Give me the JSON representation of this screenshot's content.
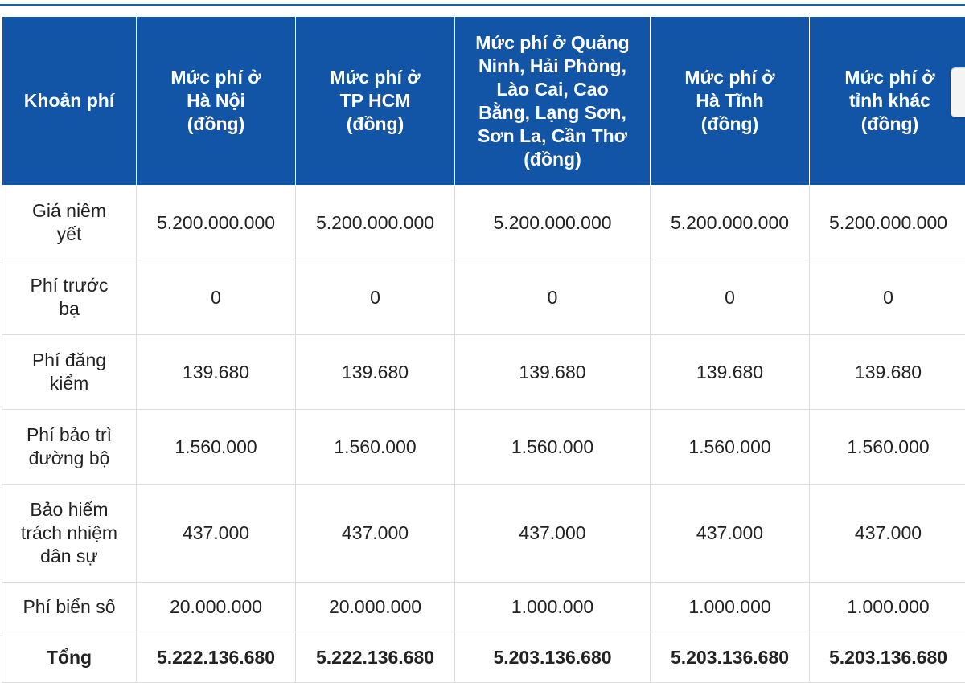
{
  "table": {
    "headers": [
      "Khoản phí",
      "Mức phí ở Hà Nội (đồng)",
      "Mức phí ở TP HCM (đồng)",
      "Mức phí ở Quảng Ninh, Hải Phòng, Lào Cai, Cao Bằng, Lạng Sơn, Sơn La, Cần Thơ (đồng)",
      "Mức phí ở Hà Tĩnh (đồng)",
      "Mức phí ở tỉnh khác (đồng)"
    ],
    "rows": [
      [
        "Giá niêm yết",
        "5.200.000.000",
        "5.200.000.000",
        "5.200.000.000",
        "5.200.000.000",
        "5.200.000.000"
      ],
      [
        "Phí trước bạ",
        "0",
        "0",
        "0",
        "0",
        "0"
      ],
      [
        "Phí đăng kiểm",
        "139.680",
        "139.680",
        "139.680",
        "139.680",
        "139.680"
      ],
      [
        "Phí bảo trì đường bộ",
        "1.560.000",
        "1.560.000",
        "1.560.000",
        "1.560.000",
        "1.560.000"
      ],
      [
        "Bảo hiểm trách nhiệm dân sự",
        "437.000",
        "437.000",
        "437.000",
        "437.000",
        "437.000"
      ],
      [
        "Phí biển số",
        "20.000.000",
        "20.000.000",
        "1.000.000",
        "1.000.000",
        "1.000.000"
      ]
    ],
    "total": [
      "Tổng",
      "5.222.136.680",
      "5.222.136.680",
      "5.203.136.680",
      "5.203.136.680",
      "5.203.136.680"
    ]
  },
  "colors": {
    "header_bg": "#1255a6",
    "header_text": "#ffffff",
    "rule": "#1b5ea8"
  }
}
